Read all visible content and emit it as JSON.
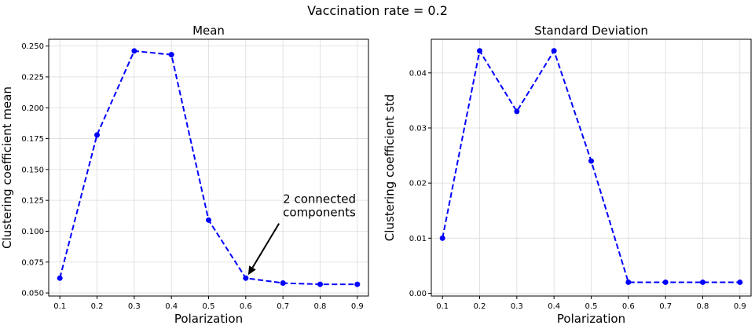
{
  "figure": {
    "title": "Vaccination rate = 0.2"
  },
  "chart_data": [
    {
      "type": "line",
      "title": "Mean",
      "xlabel": "Polarization",
      "ylabel": "Clustering coefficient mean",
      "x": [
        0.1,
        0.2,
        0.3,
        0.4,
        0.5,
        0.6,
        0.7,
        0.8,
        0.9
      ],
      "x_ticks": [
        "0.1",
        "0.2",
        "0.3",
        "0.4",
        "0.5",
        "0.6",
        "0.7",
        "0.8",
        "0.9"
      ],
      "y_ticks": [
        "0.050",
        "0.075",
        "0.100",
        "0.125",
        "0.150",
        "0.175",
        "0.200",
        "0.225",
        "0.250"
      ],
      "xlim": [
        0.07,
        0.93
      ],
      "ylim": [
        0.0475,
        0.2555
      ],
      "grid": true,
      "series": [
        {
          "values": [
            0.062,
            0.178,
            0.246,
            0.243,
            0.109,
            0.062,
            0.058,
            0.057,
            0.057
          ],
          "color": "#0000ff",
          "linestyle": "dashed",
          "marker": "circle"
        }
      ],
      "annotations": [
        {
          "text_lines": [
            "2 connected",
            "components"
          ],
          "text_x": 0.7,
          "text_y": 0.105,
          "arrow_to_x": 0.6,
          "arrow_to_y": 0.062
        }
      ]
    },
    {
      "type": "line",
      "title": "Standard Deviation",
      "xlabel": "Polarization",
      "ylabel": "Clustering coefficient std",
      "x": [
        0.1,
        0.2,
        0.3,
        0.4,
        0.5,
        0.6,
        0.7,
        0.8,
        0.9
      ],
      "x_ticks": [
        "0.1",
        "0.2",
        "0.3",
        "0.4",
        "0.5",
        "0.6",
        "0.7",
        "0.8",
        "0.9"
      ],
      "y_ticks": [
        "0.00",
        "0.01",
        "0.02",
        "0.03",
        "0.04"
      ],
      "xlim": [
        0.07,
        0.93
      ],
      "ylim": [
        -0.0005,
        0.0461
      ],
      "grid": true,
      "series": [
        {
          "values": [
            0.01,
            0.044,
            0.033,
            0.044,
            0.024,
            0.002,
            0.002,
            0.002,
            0.002
          ],
          "color": "#0000ff",
          "linestyle": "dashed",
          "marker": "circle"
        }
      ]
    }
  ]
}
